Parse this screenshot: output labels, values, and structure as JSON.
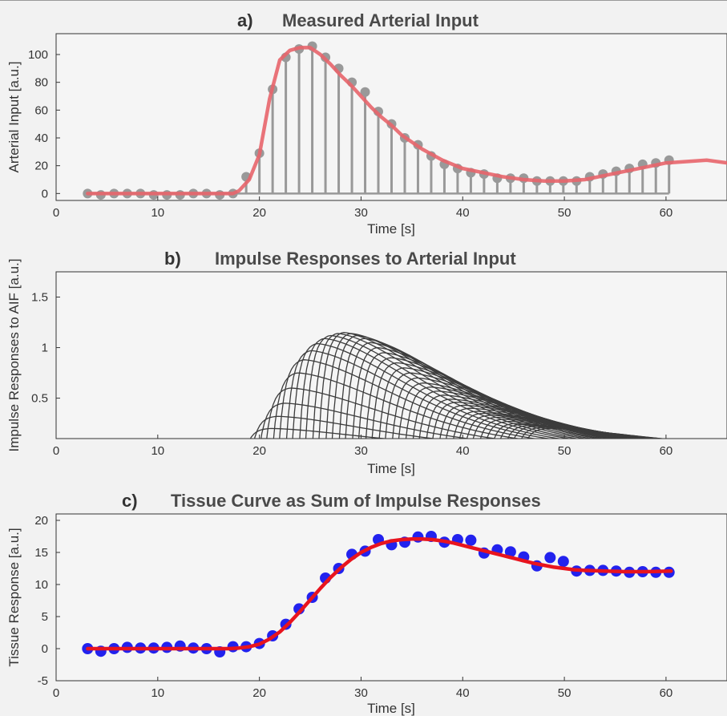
{
  "chart_data": [
    {
      "type": "line",
      "title_letter": "a)",
      "title": "Measured Arterial Input",
      "xlabel": "Time [s]",
      "ylabel": "Arterial Input [a.u.]",
      "xlim": [
        0,
        66
      ],
      "ylim": [
        -5,
        115
      ],
      "xticks": [
        0,
        10,
        20,
        30,
        40,
        50,
        60
      ],
      "yticks": [
        0,
        20,
        40,
        60,
        80,
        100
      ],
      "grid": false,
      "legend": "none",
      "colors": {
        "stem": "#999999",
        "marker": "#999999",
        "line": "#e8656b"
      },
      "series": [
        {
          "kind": "stem",
          "x": [
            3.1,
            4.4,
            5.7,
            7.0,
            8.3,
            9.6,
            10.9,
            12.2,
            13.5,
            14.8,
            16.1,
            17.4,
            18.7,
            20.0,
            21.3,
            22.6,
            23.9,
            25.2,
            26.5,
            27.8,
            29.1,
            30.4,
            31.7,
            33.0,
            34.3,
            35.6,
            36.9,
            38.2,
            39.5,
            40.8,
            42.1,
            43.4,
            44.7,
            46.0,
            47.3,
            48.6,
            49.9,
            51.2,
            52.5,
            53.8,
            55.1,
            56.4,
            57.7,
            59.0,
            60.3
          ],
          "y": [
            0,
            -1,
            0,
            0,
            0,
            -1,
            -1,
            -1,
            0,
            0,
            -1,
            0,
            12,
            29,
            75,
            98,
            104,
            106,
            98,
            90,
            80,
            73,
            59,
            50,
            40,
            35,
            27,
            21,
            18,
            15,
            14,
            11,
            11,
            11,
            9,
            9,
            9,
            9,
            12,
            14,
            16,
            18,
            21,
            22,
            24
          ]
        },
        {
          "kind": "line",
          "x": [
            3.1,
            17.4,
            18.0,
            19.0,
            20.0,
            21.0,
            22.0,
            23.0,
            24.0,
            25.0,
            26.0,
            27.0,
            28.0,
            29.0,
            30.0,
            31.0,
            32.0,
            33.0,
            34.0,
            35.0,
            36.0,
            37.0,
            38.0,
            39.0,
            40.0,
            42.0,
            44.0,
            46.0,
            48.0,
            50.0,
            52.0,
            54.0,
            56.0,
            58.0,
            60.0,
            62.0,
            64.0,
            66.0
          ],
          "y": [
            0,
            0,
            2,
            10,
            28,
            68,
            96,
            103,
            105,
            105,
            100,
            93,
            85,
            78,
            70,
            62,
            55,
            49,
            42,
            37,
            32,
            28,
            24,
            21,
            18,
            15,
            12,
            10,
            9,
            9,
            10,
            13,
            16,
            19,
            22,
            23,
            24,
            22
          ]
        }
      ]
    },
    {
      "type": "line",
      "title_letter": "b)",
      "title": "Impulse Responses to Arterial Input",
      "xlabel": "Time [s]",
      "ylabel": "Impulse Responses to AIF [a.u.]",
      "xlim": [
        0,
        66
      ],
      "ylim": [
        0.1,
        1.75
      ],
      "xticks": [
        0,
        10,
        20,
        30,
        40,
        50,
        60
      ],
      "yticks": [
        0.5,
        1,
        1.5
      ],
      "grid": false,
      "legend": "none",
      "curve_shape": {
        "tau": 2.2,
        "peak_delay": 2.4,
        "decay": 14.0
      },
      "colors": {
        "line": "#3c3c3c"
      },
      "series": [
        {
          "onset": [
            17.4,
            18.0,
            18.7,
            19.3,
            20.0,
            20.6,
            21.3,
            21.9,
            22.6,
            23.2,
            23.9,
            24.5,
            25.2,
            25.8,
            26.5,
            27.1,
            27.8,
            28.4,
            29.1,
            29.7,
            30.4,
            31.0,
            31.7,
            32.3,
            33.0,
            33.6,
            34.3,
            35.0,
            35.6,
            36.3,
            36.9,
            37.6,
            38.2,
            38.9,
            39.5,
            40.2,
            40.8,
            41.5,
            42.1,
            42.8,
            43.4,
            44.1,
            44.7,
            45.4,
            46.0
          ],
          "peak": [
            0.06,
            0.1,
            0.2,
            0.32,
            0.45,
            0.6,
            0.75,
            0.88,
            0.97,
            1.04,
            1.09,
            1.12,
            1.14,
            1.15,
            1.14,
            1.12,
            1.09,
            1.05,
            1.0,
            0.95,
            0.9,
            0.85,
            0.8,
            0.75,
            0.7,
            0.65,
            0.61,
            0.57,
            0.53,
            0.49,
            0.46,
            0.43,
            0.4,
            0.37,
            0.35,
            0.33,
            0.31,
            0.29,
            0.27,
            0.25,
            0.24,
            0.23,
            0.22,
            0.21,
            0.2
          ]
        }
      ]
    },
    {
      "type": "scatter",
      "title_letter": "c)",
      "title": "Tissue Curve as Sum of Impulse Responses",
      "xlabel": "Time [s]",
      "ylabel": "Tissue Response [a.u.]",
      "xlim": [
        0,
        66
      ],
      "ylim": [
        -5,
        21
      ],
      "xticks": [
        0,
        10,
        20,
        30,
        40,
        50,
        60
      ],
      "yticks": [
        -5,
        0,
        5,
        10,
        15,
        20
      ],
      "grid": false,
      "legend": "none",
      "colors": {
        "marker": "#2222ee",
        "line": "#e8141e"
      },
      "series": [
        {
          "kind": "scatter",
          "x": [
            3.1,
            4.4,
            5.7,
            7.0,
            8.3,
            9.6,
            10.9,
            12.2,
            13.5,
            14.8,
            16.1,
            17.4,
            18.7,
            20.0,
            21.3,
            22.6,
            23.9,
            25.2,
            26.5,
            27.8,
            29.1,
            30.4,
            31.7,
            33.0,
            34.3,
            35.6,
            36.9,
            38.2,
            39.5,
            40.8,
            42.1,
            43.4,
            44.7,
            46.0,
            47.3,
            48.6,
            49.9,
            51.2,
            52.5,
            53.8,
            55.1,
            56.4,
            57.7,
            59.0,
            60.3
          ],
          "y": [
            0,
            -0.4,
            0,
            0.2,
            0.1,
            0.1,
            0.2,
            0.4,
            0.1,
            0,
            -0.5,
            0.3,
            0.3,
            0.8,
            2,
            3.8,
            6.2,
            8,
            11,
            12.5,
            14.7,
            15.2,
            17,
            16.2,
            16.6,
            17.4,
            17.5,
            16.6,
            17,
            16.9,
            14.9,
            15.4,
            15.1,
            14.3,
            12.9,
            14.2,
            13.6,
            12.1,
            12.2,
            12.2,
            12.1,
            11.9,
            12,
            11.9,
            11.9
          ]
        },
        {
          "kind": "line",
          "x": [
            3.1,
            17.0,
            18.0,
            19.0,
            20.0,
            21.0,
            22.0,
            23.0,
            24.0,
            25.0,
            26.0,
            27.0,
            28.0,
            29.0,
            30.0,
            31.0,
            32.0,
            33.0,
            34.0,
            35.0,
            36.0,
            37.0,
            38.0,
            39.0,
            40.0,
            41.0,
            42.0,
            43.0,
            44.0,
            45.0,
            46.0,
            47.0,
            48.0,
            49.0,
            50.0,
            51.0,
            52.0,
            54.0,
            56.0,
            58.0,
            60.5
          ],
          "y": [
            0,
            0,
            0.1,
            0.3,
            0.7,
            1.5,
            2.6,
            4.1,
            5.8,
            7.6,
            9.4,
            11.1,
            12.6,
            13.9,
            15,
            15.8,
            16.4,
            16.8,
            17,
            17.1,
            17.1,
            17,
            16.8,
            16.5,
            16.1,
            15.7,
            15.3,
            14.9,
            14.5,
            14.1,
            13.7,
            13.3,
            13,
            12.7,
            12.5,
            12.3,
            12.2,
            12.1,
            12,
            12,
            12.1
          ]
        }
      ]
    }
  ]
}
